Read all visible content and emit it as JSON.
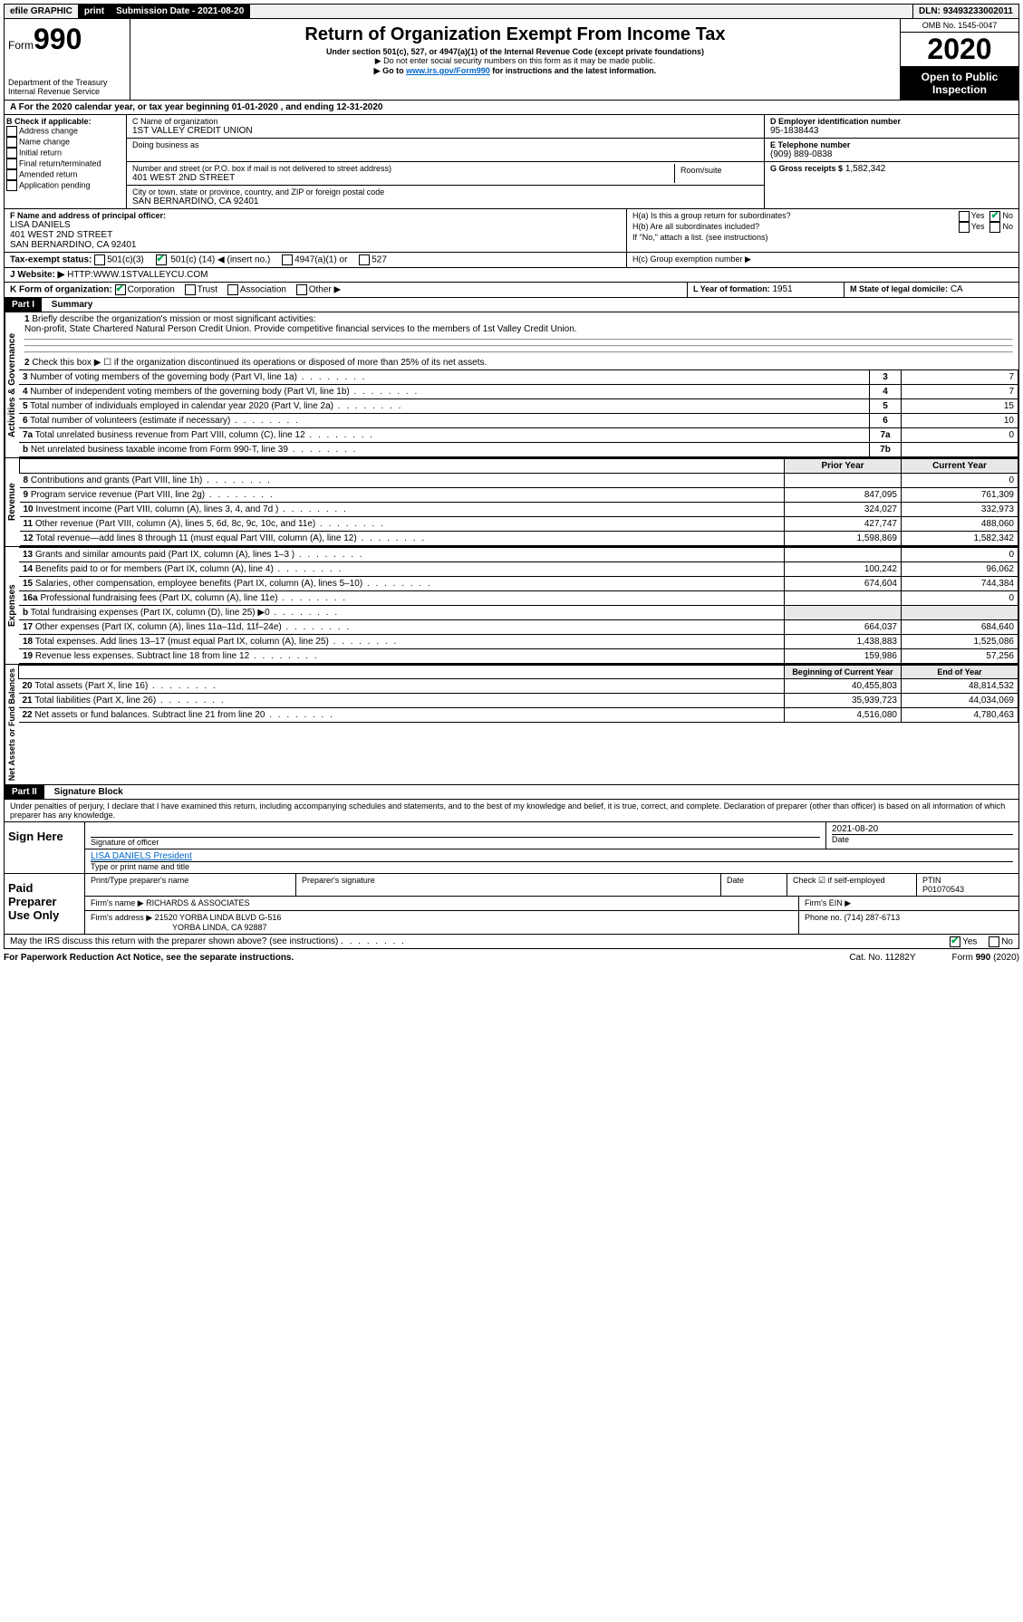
{
  "topbar": {
    "efile": "efile GRAPHIC",
    "print": "print",
    "subdate_label": "Submission Date - ",
    "subdate": "2021-08-20",
    "dln_label": "DLN: ",
    "dln": "93493233002011"
  },
  "header": {
    "form_prefix": "Form",
    "form_no": "990",
    "dept": "Department of the Treasury",
    "irs": "Internal Revenue Service",
    "title": "Return of Organization Exempt From Income Tax",
    "subtitle": "Under section 501(c), 527, or 4947(a)(1) of the Internal Revenue Code (except private foundations)",
    "note1": "▶ Do not enter social security numbers on this form as it may be made public.",
    "note2_pre": "▶ Go to ",
    "note2_link": "www.irs.gov/Form990",
    "note2_post": " for instructions and the latest information.",
    "omb": "OMB No. 1545-0047",
    "year": "2020",
    "open": "Open to Public Inspection"
  },
  "rowA": {
    "text_pre": "A For the 2020 calendar year, or tax year beginning ",
    "begin": "01-01-2020",
    "mid": " , and ending ",
    "end": "12-31-2020"
  },
  "boxB": {
    "label": "B Check if applicable:",
    "items": [
      "Address change",
      "Name change",
      "Initial return",
      "Final return/terminated",
      "Amended return",
      "Application pending"
    ]
  },
  "boxC": {
    "name_label": "C Name of organization",
    "name": "1ST VALLEY CREDIT UNION",
    "dba_label": "Doing business as",
    "addr_label": "Number and street (or P.O. box if mail is not delivered to street address)",
    "room_label": "Room/suite",
    "addr": "401 WEST 2ND STREET",
    "city_label": "City or town, state or province, country, and ZIP or foreign postal code",
    "city": "SAN BERNARDINO, CA  92401"
  },
  "boxD": {
    "label": "D Employer identification number",
    "val": "95-1838443"
  },
  "boxE": {
    "label": "E Telephone number",
    "val": "(909) 889-0838"
  },
  "boxG": {
    "label": "G Gross receipts $",
    "val": "1,582,342"
  },
  "boxF": {
    "label": "F  Name and address of principal officer:",
    "name": "LISA DANIELS",
    "addr1": "401 WEST 2ND STREET",
    "addr2": "SAN BERNARDINO, CA  92401"
  },
  "boxH": {
    "a": "H(a)  Is this a group return for subordinates?",
    "b": "H(b)  Are all subordinates included?",
    "bnote": "If \"No,\" attach a list. (see instructions)",
    "c": "H(c)  Group exemption number ▶",
    "yes": "Yes",
    "no": "No"
  },
  "boxI": {
    "label": "Tax-exempt status:",
    "c3": "501(c)(3)",
    "c": "501(c) (",
    "cnum": "14",
    "cend": ") ◀ (insert no.)",
    "a1": "4947(a)(1) or",
    "a2": "527"
  },
  "boxJ": {
    "label": "J Website: ▶",
    "val": "HTTP:WWW.1STVALLEYCU.COM"
  },
  "boxK": {
    "label": "K Form of organization:",
    "corp": "Corporation",
    "trust": "Trust",
    "assoc": "Association",
    "other": "Other ▶"
  },
  "boxL": {
    "label": "L Year of formation:",
    "val": "1951"
  },
  "boxM": {
    "label": "M State of legal domicile:",
    "val": "CA"
  },
  "part1": {
    "title": "Part I",
    "sub": "Summary",
    "l1": "Briefly describe the organization's mission or most significant activities:",
    "l1val": "Non-profit, State Chartered Natural Person Credit Union. Provide competitive financial services to the members of 1st Valley Credit Union.",
    "l2": "Check this box ▶ ☐  if the organization discontinued its operations or disposed of more than 25% of its net assets.",
    "side_ag": "Activities & Governance",
    "side_rev": "Revenue",
    "side_exp": "Expenses",
    "side_net": "Net Assets or Fund Balances",
    "lines_gov": [
      {
        "n": "3",
        "t": "Number of voting members of the governing body (Part VI, line 1a)",
        "b": "3",
        "v": "7"
      },
      {
        "n": "4",
        "t": "Number of independent voting members of the governing body (Part VI, line 1b)",
        "b": "4",
        "v": "7"
      },
      {
        "n": "5",
        "t": "Total number of individuals employed in calendar year 2020 (Part V, line 2a)",
        "b": "5",
        "v": "15"
      },
      {
        "n": "6",
        "t": "Total number of volunteers (estimate if necessary)",
        "b": "6",
        "v": "10"
      },
      {
        "n": "7a",
        "t": "Total unrelated business revenue from Part VIII, column (C), line 12",
        "b": "7a",
        "v": "0"
      },
      {
        "n": "b",
        "t": "Net unrelated business taxable income from Form 990-T, line 39",
        "b": "7b",
        "v": ""
      }
    ],
    "col_prior": "Prior Year",
    "col_curr": "Current Year",
    "lines_rev": [
      {
        "n": "8",
        "t": "Contributions and grants (Part VIII, line 1h)",
        "p": "",
        "c": "0"
      },
      {
        "n": "9",
        "t": "Program service revenue (Part VIII, line 2g)",
        "p": "847,095",
        "c": "761,309"
      },
      {
        "n": "10",
        "t": "Investment income (Part VIII, column (A), lines 3, 4, and 7d )",
        "p": "324,027",
        "c": "332,973"
      },
      {
        "n": "11",
        "t": "Other revenue (Part VIII, column (A), lines 5, 6d, 8c, 9c, 10c, and 11e)",
        "p": "427,747",
        "c": "488,060"
      },
      {
        "n": "12",
        "t": "Total revenue—add lines 8 through 11 (must equal Part VIII, column (A), line 12)",
        "p": "1,598,869",
        "c": "1,582,342"
      }
    ],
    "lines_exp": [
      {
        "n": "13",
        "t": "Grants and similar amounts paid (Part IX, column (A), lines 1–3 )",
        "p": "",
        "c": "0"
      },
      {
        "n": "14",
        "t": "Benefits paid to or for members (Part IX, column (A), line 4)",
        "p": "100,242",
        "c": "96,062"
      },
      {
        "n": "15",
        "t": "Salaries, other compensation, employee benefits (Part IX, column (A), lines 5–10)",
        "p": "674,604",
        "c": "744,384"
      },
      {
        "n": "16a",
        "t": "Professional fundraising fees (Part IX, column (A), line 11e)",
        "p": "",
        "c": "0"
      },
      {
        "n": "b",
        "t": "Total fundraising expenses (Part IX, column (D), line 25) ▶0",
        "p": "",
        "c": "",
        "grey": true
      },
      {
        "n": "17",
        "t": "Other expenses (Part IX, column (A), lines 11a–11d, 11f–24e)",
        "p": "664,037",
        "c": "684,640"
      },
      {
        "n": "18",
        "t": "Total expenses. Add lines 13–17 (must equal Part IX, column (A), line 25)",
        "p": "1,438,883",
        "c": "1,525,086"
      },
      {
        "n": "19",
        "t": "Revenue less expenses. Subtract line 18 from line 12",
        "p": "159,986",
        "c": "57,256"
      }
    ],
    "col_begin": "Beginning of Current Year",
    "col_end": "End of Year",
    "lines_net": [
      {
        "n": "20",
        "t": "Total assets (Part X, line 16)",
        "p": "40,455,803",
        "c": "48,814,532"
      },
      {
        "n": "21",
        "t": "Total liabilities (Part X, line 26)",
        "p": "35,939,723",
        "c": "44,034,069"
      },
      {
        "n": "22",
        "t": "Net assets or fund balances. Subtract line 21 from line 20",
        "p": "4,516,080",
        "c": "4,780,463"
      }
    ]
  },
  "part2": {
    "title": "Part II",
    "sub": "Signature Block",
    "perjury": "Under penalties of perjury, I declare that I have examined this return, including accompanying schedules and statements, and to the best of my knowledge and belief, it is true, correct, and complete. Declaration of preparer (other than officer) is based on all information of which preparer has any knowledge.",
    "sign_here": "Sign Here",
    "sig_officer": "Signature of officer",
    "date": "2021-08-20",
    "date_label": "Date",
    "officer_name": "LISA DANIELS President",
    "type_name": "Type or print name and title",
    "paid": "Paid Preparer Use Only",
    "prep_name_label": "Print/Type preparer's name",
    "prep_sig_label": "Preparer's signature",
    "check_self": "Check ☑ if self-employed",
    "ptin_label": "PTIN",
    "ptin": "P01070543",
    "firm_name_label": "Firm's name   ▶",
    "firm_name": "RICHARDS & ASSOCIATES",
    "firm_ein_label": "Firm's EIN ▶",
    "firm_addr_label": "Firm's address ▶",
    "firm_addr1": "21520 YORBA LINDA BLVD G-516",
    "firm_addr2": "YORBA LINDA, CA  92887",
    "phone_label": "Phone no.",
    "phone": "(714) 287-6713",
    "discuss": "May the IRS discuss this return with the preparer shown above? (see instructions)",
    "yes": "Yes",
    "no": "No"
  },
  "footer": {
    "pra": "For Paperwork Reduction Act Notice, see the separate instructions.",
    "cat": "Cat. No. 11282Y",
    "form": "Form 990 (2020)"
  }
}
